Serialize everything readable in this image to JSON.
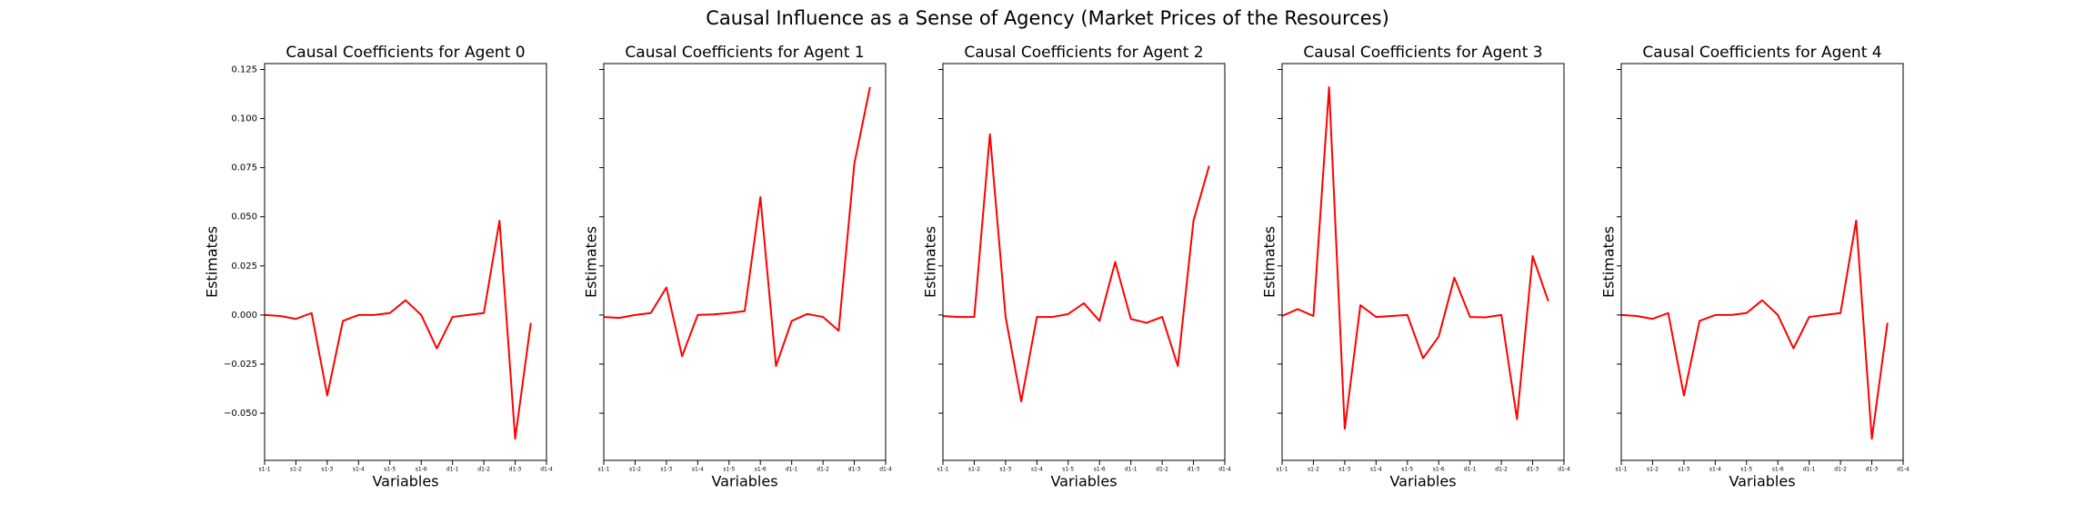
{
  "title": "Causal Influence as a Sense of Agency (Market Prices of the Resources)",
  "chart_data": [
    {
      "type": "line",
      "title": "Causal Coefficients for Agent 0",
      "xlabel": "Variables",
      "ylabel": "Estimates",
      "color": "#ff0000",
      "x": [
        0,
        1,
        2,
        3,
        4,
        5,
        6,
        7,
        8,
        9,
        10,
        11,
        12,
        13,
        14,
        15,
        16,
        17
      ],
      "values": [
        0,
        -0.0005,
        -0.002,
        0.001,
        -0.041,
        -0.003,
        0,
        0,
        0.001,
        0.0075,
        0,
        -0.017,
        -0.001,
        0,
        0.001,
        0.048,
        -0.063,
        -0.004
      ],
      "xlim": [
        0,
        18
      ],
      "xticks": [
        {
          "value": 0,
          "label": "s1-1"
        },
        {
          "value": 2,
          "label": "s1-2"
        },
        {
          "value": 4,
          "label": "s1-3"
        },
        {
          "value": 6,
          "label": "s1-4"
        },
        {
          "value": 8,
          "label": "s1-5"
        },
        {
          "value": 10,
          "label": "s1-6"
        },
        {
          "value": 12,
          "label": "d1-1"
        },
        {
          "value": 14,
          "label": "d1-2"
        },
        {
          "value": 16,
          "label": "d1-3"
        },
        {
          "value": 18,
          "label": "d1-4"
        }
      ],
      "ylim": [
        -0.074,
        0.128
      ],
      "yticks": [
        {
          "value": -0.05,
          "label": "−0.050"
        },
        {
          "value": -0.025,
          "label": "−0.025"
        },
        {
          "value": 0,
          "label": "0.000"
        },
        {
          "value": 0.025,
          "label": "0.025"
        },
        {
          "value": 0.05,
          "label": "0.050"
        },
        {
          "value": 0.075,
          "label": "0.075"
        },
        {
          "value": 0.1,
          "label": "0.100"
        },
        {
          "value": 0.125,
          "label": "0.125"
        }
      ]
    },
    {
      "type": "line",
      "title": "Causal Coefficients for Agent 1",
      "xlabel": "Variables",
      "ylabel": "Estimates",
      "color": "#ff0000",
      "x": [
        0,
        1,
        2,
        3,
        4,
        5,
        6,
        7,
        8,
        9,
        10,
        11,
        12,
        13,
        14,
        15,
        16,
        17
      ],
      "values": [
        -0.001,
        -0.0015,
        0,
        0.001,
        0.014,
        -0.021,
        0,
        0.0003,
        0.001,
        0.002,
        0.06,
        -0.026,
        -0.003,
        0.0005,
        -0.001,
        -0.008,
        0.077,
        0.116
      ],
      "xlim": [
        0,
        18
      ],
      "xticks": [
        {
          "value": 0,
          "label": "s1-1"
        },
        {
          "value": 2,
          "label": "s1-2"
        },
        {
          "value": 4,
          "label": "s1-3"
        },
        {
          "value": 6,
          "label": "s1-4"
        },
        {
          "value": 8,
          "label": "s1-5"
        },
        {
          "value": 10,
          "label": "s1-6"
        },
        {
          "value": 12,
          "label": "d1-1"
        },
        {
          "value": 14,
          "label": "d1-2"
        },
        {
          "value": 16,
          "label": "d1-3"
        },
        {
          "value": 18,
          "label": "d1-4"
        }
      ]
    },
    {
      "type": "line",
      "title": "Causal Coefficients for Agent 2",
      "xlabel": "Variables",
      "ylabel": "Estimates",
      "color": "#ff0000",
      "x": [
        0,
        1,
        2,
        3,
        4,
        5,
        6,
        7,
        8,
        9,
        10,
        11,
        12,
        13,
        14,
        15,
        16,
        17
      ],
      "values": [
        -0.0005,
        -0.001,
        -0.001,
        0.092,
        -0.001,
        -0.044,
        -0.001,
        -0.001,
        0.0005,
        0.006,
        -0.003,
        0.027,
        -0.002,
        -0.004,
        -0.001,
        -0.026,
        0.048,
        0.076
      ],
      "xlim": [
        0,
        18
      ],
      "xticks": [
        {
          "value": 0,
          "label": "s1-1"
        },
        {
          "value": 2,
          "label": "s1-2"
        },
        {
          "value": 4,
          "label": "s1-3"
        },
        {
          "value": 6,
          "label": "s1-4"
        },
        {
          "value": 8,
          "label": "s1-5"
        },
        {
          "value": 10,
          "label": "s1-6"
        },
        {
          "value": 12,
          "label": "d1-1"
        },
        {
          "value": 14,
          "label": "d1-2"
        },
        {
          "value": 16,
          "label": "d1-3"
        },
        {
          "value": 18,
          "label": "d1-4"
        }
      ]
    },
    {
      "type": "line",
      "title": "Causal Coefficients for Agent 3",
      "xlabel": "Variables",
      "ylabel": "Estimates",
      "color": "#ff0000",
      "x": [
        0,
        1,
        2,
        3,
        4,
        5,
        6,
        7,
        8,
        9,
        10,
        11,
        12,
        13,
        14,
        15,
        16,
        17
      ],
      "values": [
        -0.0005,
        0.003,
        -0.0005,
        0.116,
        -0.058,
        0.005,
        -0.001,
        -0.0005,
        0,
        -0.022,
        -0.011,
        0.019,
        -0.001,
        -0.0012,
        0,
        -0.053,
        0.03,
        0.007
      ],
      "xlim": [
        0,
        18
      ],
      "xticks": [
        {
          "value": 0,
          "label": "s1-1"
        },
        {
          "value": 2,
          "label": "s1-2"
        },
        {
          "value": 4,
          "label": "s1-3"
        },
        {
          "value": 6,
          "label": "s1-4"
        },
        {
          "value": 8,
          "label": "s1-5"
        },
        {
          "value": 10,
          "label": "s1-6"
        },
        {
          "value": 12,
          "label": "d1-1"
        },
        {
          "value": 14,
          "label": "d1-2"
        },
        {
          "value": 16,
          "label": "d1-3"
        },
        {
          "value": 18,
          "label": "d1-4"
        }
      ]
    },
    {
      "type": "line",
      "title": "Causal Coefficients for Agent 4",
      "xlabel": "Variables",
      "ylabel": "Estimates",
      "color": "#ff0000",
      "x": [
        0,
        1,
        2,
        3,
        4,
        5,
        6,
        7,
        8,
        9,
        10,
        11,
        12,
        13,
        14,
        15,
        16,
        17
      ],
      "values": [
        0,
        -0.0005,
        -0.002,
        0.001,
        -0.041,
        -0.003,
        0,
        0,
        0.001,
        0.0075,
        0,
        -0.017,
        -0.001,
        0,
        0.001,
        0.048,
        -0.063,
        -0.004
      ],
      "xlim": [
        0,
        18
      ],
      "xticks": [
        {
          "value": 0,
          "label": "s1-1"
        },
        {
          "value": 2,
          "label": "s1-2"
        },
        {
          "value": 4,
          "label": "s1-3"
        },
        {
          "value": 6,
          "label": "s1-4"
        },
        {
          "value": 8,
          "label": "s1-5"
        },
        {
          "value": 10,
          "label": "s1-6"
        },
        {
          "value": 12,
          "label": "d1-1"
        },
        {
          "value": 14,
          "label": "d1-2"
        },
        {
          "value": 16,
          "label": "d1-3"
        },
        {
          "value": 18,
          "label": "d1-4"
        }
      ]
    }
  ]
}
